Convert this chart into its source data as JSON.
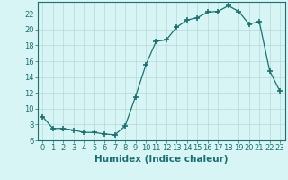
{
  "x": [
    0,
    1,
    2,
    3,
    4,
    5,
    6,
    7,
    8,
    9,
    10,
    11,
    12,
    13,
    14,
    15,
    16,
    17,
    18,
    19,
    20,
    21,
    22,
    23
  ],
  "y": [
    9.0,
    7.5,
    7.5,
    7.3,
    7.0,
    7.0,
    6.8,
    6.7,
    7.8,
    11.5,
    15.5,
    18.5,
    18.7,
    20.3,
    21.2,
    21.5,
    22.2,
    22.3,
    23.0,
    22.3,
    20.7,
    21.0,
    14.8,
    12.2
  ],
  "line_color": "#1a7070",
  "marker": "+",
  "marker_size": 4,
  "bg_color": "#d8f5f5",
  "grid_color": "#b8d8d8",
  "xlabel": "Humidex (Indice chaleur)",
  "xlim": [
    -0.5,
    23.5
  ],
  "ylim": [
    6,
    23.5
  ],
  "yticks": [
    6,
    8,
    10,
    12,
    14,
    16,
    18,
    20,
    22
  ],
  "xticks": [
    0,
    1,
    2,
    3,
    4,
    5,
    6,
    7,
    8,
    9,
    10,
    11,
    12,
    13,
    14,
    15,
    16,
    17,
    18,
    19,
    20,
    21,
    22,
    23
  ],
  "tick_label_fontsize": 6,
  "xlabel_fontsize": 7.5
}
